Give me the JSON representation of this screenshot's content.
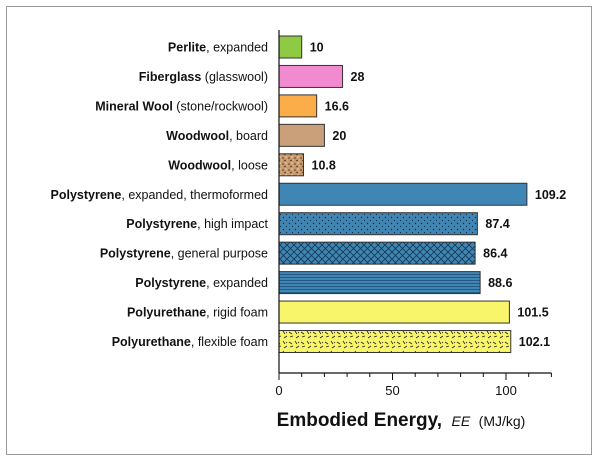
{
  "chart_data": {
    "type": "bar",
    "orientation": "horizontal",
    "categories": [
      {
        "bold": "Perlite",
        "rest": ", expanded"
      },
      {
        "bold": "Fiberglass",
        "rest": " (glasswool)"
      },
      {
        "bold": "Mineral Wool",
        "rest": " (stone/rockwool)"
      },
      {
        "bold": "Woodwool",
        "rest": ", board"
      },
      {
        "bold": "Woodwool",
        "rest": ", loose"
      },
      {
        "bold": "Polystyrene",
        "rest": ", expanded, thermoformed"
      },
      {
        "bold": "Polystyrene",
        "rest": ", high impact"
      },
      {
        "bold": "Polystyrene",
        "rest": ", general purpose"
      },
      {
        "bold": "Polystyrene",
        "rest": ", expanded"
      },
      {
        "bold": "Polyurethane",
        "rest": ", rigid foam"
      },
      {
        "bold": "Polyurethane",
        "rest": ", flexible foam"
      }
    ],
    "values": [
      10,
      28,
      16.6,
      20,
      10.8,
      109.2,
      87.4,
      86.4,
      88.6,
      101.5,
      102.1
    ],
    "value_labels": [
      "10",
      "28",
      "16.6",
      "20",
      "10.8",
      "109.2",
      "87.4",
      "86.4",
      "88.6",
      "101.5",
      "102.1"
    ],
    "colors": [
      "#8fca45",
      "#f28ad0",
      "#fbad4a",
      "#c9a07a",
      "#c69a6d",
      "#3f86b5",
      "#3f86b5",
      "#3f86b5",
      "#3f86b5",
      "#f8f56a",
      "#f8f56a"
    ],
    "patterns": [
      "solid",
      "solid",
      "solid",
      "solid",
      "speckle",
      "solid",
      "dots",
      "crosshatch",
      "hlines",
      "solid",
      "dashes"
    ],
    "xlim": [
      0,
      120
    ],
    "xticks": [
      0,
      50,
      100
    ],
    "xlabel": {
      "main": "Embodied Energy,",
      "symbol": "EE",
      "unit": "(MJ/kg)"
    },
    "grid": false
  }
}
